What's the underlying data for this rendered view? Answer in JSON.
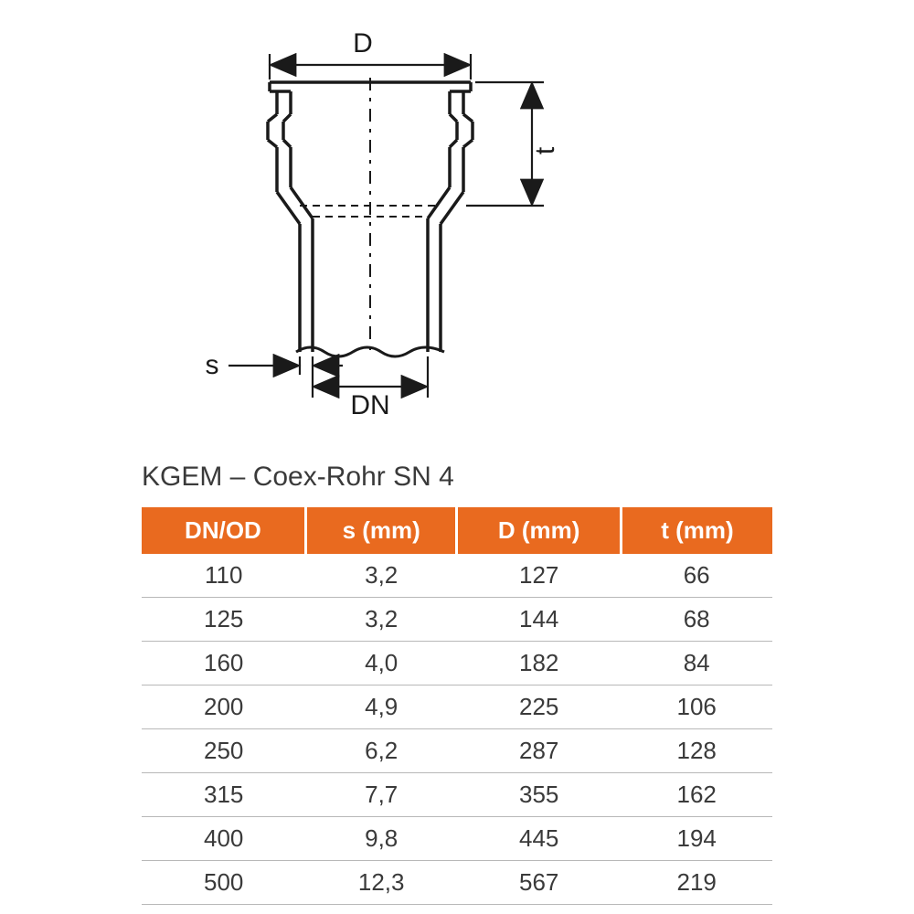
{
  "diagram": {
    "labels": {
      "D": "D",
      "t": "t",
      "s": "s",
      "DN": "DN"
    },
    "stroke_color": "#1a1a1a",
    "stroke_width_main": 3.5,
    "stroke_width_dim": 2.2,
    "dash_pattern": "10,7,3,7"
  },
  "table": {
    "title": "KGEM – Coex-Rohr SN 4",
    "header_bg": "#e96a1f",
    "header_fg": "#ffffff",
    "row_border": "#b8b8b8",
    "cell_fg": "#3a3a3a",
    "title_fontsize": 30,
    "header_fontsize": 26,
    "cell_fontsize": 26,
    "columns": [
      "DN/OD",
      "s (mm)",
      "D (mm)",
      "t (mm)"
    ],
    "col_widths": [
      "26%",
      "24%",
      "26%",
      "24%"
    ],
    "rows": [
      [
        "110",
        "3,2",
        "127",
        "66"
      ],
      [
        "125",
        "3,2",
        "144",
        "68"
      ],
      [
        "160",
        "4,0",
        "182",
        "84"
      ],
      [
        "200",
        "4,9",
        "225",
        "106"
      ],
      [
        "250",
        "6,2",
        "287",
        "128"
      ],
      [
        "315",
        "7,7",
        "355",
        "162"
      ],
      [
        "400",
        "9,8",
        "445",
        "194"
      ],
      [
        "500",
        "12,3",
        "567",
        "219"
      ]
    ]
  }
}
